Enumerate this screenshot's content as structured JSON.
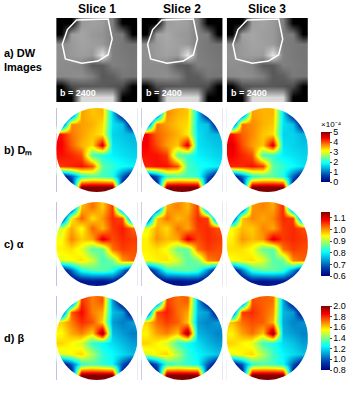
{
  "chart_data": {
    "type": "heatmap",
    "tick_labels": false,
    "columns": [
      "Slice 1",
      "Slice 2",
      "Slice 3"
    ],
    "rows": [
      {
        "label": "a) DW Images",
        "color": "gray",
        "zlim": [
          0,
          1
        ],
        "annotation": "b = 2400",
        "roi": {
          "x": [
            1.5,
            4.6,
            5.0,
            4.6,
            3.6,
            2.0,
            0.4,
            0.1,
            0.6
          ],
          "y": [
            -0.3,
            -0.4,
            1.5,
            3.0,
            3.6,
            3.8,
            3.4,
            2.0,
            0.6
          ]
        },
        "cells": [
          [
            [
              0,
              0,
              0.6,
              0.63,
              0.61,
              0.5,
              0,
              0
            ],
            [
              0,
              0.62,
              0.65,
              0.6,
              0.58,
              0.5,
              0.48,
              0
            ],
            [
              0.55,
              0.6,
              0.64,
              0.62,
              0.6,
              0.5,
              0.47,
              0.45
            ],
            [
              0.56,
              0.6,
              0.62,
              0.6,
              0.9,
              0.5,
              0.48,
              0.46
            ],
            [
              0.55,
              0.54,
              0.52,
              0.35,
              0.36,
              0.5,
              0.49,
              0.47
            ],
            [
              0.54,
              0.55,
              0.56,
              0.5,
              0.35,
              0.37,
              0.47,
              0.46
            ],
            [
              0,
              0.3,
              0.34,
              0.35,
              0.36,
              0.34,
              0.3,
              0
            ],
            [
              0,
              0,
              0.85,
              0.85,
              0.85,
              0.85,
              0,
              0
            ]
          ],
          [
            [
              0,
              0,
              0.61,
              0.64,
              0.62,
              0.5,
              0,
              0
            ],
            [
              0,
              0.63,
              0.66,
              0.61,
              0.59,
              0.51,
              0.48,
              0
            ],
            [
              0.56,
              0.61,
              0.65,
              0.63,
              0.6,
              0.5,
              0.47,
              0.45
            ],
            [
              0.56,
              0.61,
              0.63,
              0.61,
              0.9,
              0.5,
              0.48,
              0.46
            ],
            [
              0.55,
              0.55,
              0.53,
              0.36,
              0.35,
              0.5,
              0.49,
              0.47
            ],
            [
              0.54,
              0.55,
              0.56,
              0.51,
              0.36,
              0.36,
              0.47,
              0.46
            ],
            [
              0,
              0.3,
              0.33,
              0.35,
              0.35,
              0.34,
              0.3,
              0
            ],
            [
              0,
              0,
              0.85,
              0.86,
              0.86,
              0.85,
              0,
              0
            ]
          ],
          [
            [
              0,
              0,
              0.62,
              0.64,
              0.61,
              0.51,
              0,
              0
            ],
            [
              0,
              0.63,
              0.65,
              0.62,
              0.6,
              0.5,
              0.49,
              0
            ],
            [
              0.55,
              0.6,
              0.64,
              0.63,
              0.61,
              0.5,
              0.48,
              0.46
            ],
            [
              0.57,
              0.6,
              0.62,
              0.61,
              0.9,
              0.51,
              0.48,
              0.46
            ],
            [
              0.56,
              0.55,
              0.52,
              0.36,
              0.35,
              0.5,
              0.49,
              0.47
            ],
            [
              0.54,
              0.56,
              0.55,
              0.5,
              0.35,
              0.37,
              0.48,
              0.46
            ],
            [
              0,
              0.31,
              0.34,
              0.35,
              0.35,
              0.33,
              0.3,
              0
            ],
            [
              0,
              0,
              0.86,
              0.86,
              0.85,
              0.85,
              0,
              0
            ]
          ]
        ]
      },
      {
        "label": "b) Dₘ",
        "color": "jet",
        "zlim": [
          0,
          5
        ],
        "zticks": [
          0,
          1,
          2,
          3,
          4,
          5
        ],
        "colorbar_title": "×10⁻⁴",
        "cells": [
          [
            [
              0,
              0,
              3.6,
              3.4,
              3.5,
              1.6,
              0,
              0
            ],
            [
              0,
              3.7,
              3.6,
              3.5,
              3.3,
              1.7,
              1.5,
              0
            ],
            [
              4.3,
              3.8,
              3.6,
              3.4,
              3.2,
              1.6,
              1.5,
              1.4
            ],
            [
              4.4,
              3.9,
              3.5,
              3.3,
              4.6,
              1.7,
              1.6,
              1.5
            ],
            [
              4.3,
              4.2,
              4.0,
              2.2,
              2.0,
              1.8,
              1.7,
              1.6
            ],
            [
              4.1,
              4.2,
              4.3,
              4.0,
              2.3,
              2.1,
              1.9,
              1.8
            ],
            [
              0,
              0.8,
              2.0,
              2.3,
              2.2,
              2.0,
              0.9,
              0
            ],
            [
              0,
              0,
              5,
              5,
              5,
              5,
              0,
              0
            ]
          ],
          [
            [
              0,
              0,
              3.7,
              3.5,
              3.4,
              1.6,
              0,
              0
            ],
            [
              0,
              3.8,
              3.6,
              3.4,
              3.3,
              1.6,
              1.5,
              0
            ],
            [
              4.4,
              3.9,
              3.7,
              3.5,
              3.2,
              1.7,
              1.5,
              1.4
            ],
            [
              4.4,
              4.0,
              3.6,
              3.4,
              4.6,
              1.7,
              1.6,
              1.5
            ],
            [
              4.3,
              4.3,
              4.1,
              2.3,
              2.1,
              1.8,
              1.7,
              1.6
            ],
            [
              4.2,
              4.3,
              4.3,
              4.0,
              2.2,
              2.0,
              1.9,
              1.8
            ],
            [
              0,
              0.8,
              2.1,
              2.3,
              2.2,
              2.1,
              0.9,
              0
            ],
            [
              0,
              0,
              5,
              5,
              5,
              5,
              0,
              0
            ]
          ],
          [
            [
              0,
              0,
              3.6,
              3.5,
              3.5,
              1.7,
              0,
              0
            ],
            [
              0,
              3.8,
              3.7,
              3.5,
              3.4,
              1.7,
              1.5,
              0
            ],
            [
              4.3,
              3.9,
              3.7,
              3.4,
              3.3,
              1.6,
              1.6,
              1.4
            ],
            [
              4.5,
              4.0,
              3.6,
              3.4,
              4.6,
              1.7,
              1.6,
              1.5
            ],
            [
              4.4,
              4.2,
              4.0,
              2.2,
              2.1,
              1.8,
              1.7,
              1.6
            ],
            [
              4.2,
              4.2,
              4.3,
              4.1,
              2.3,
              2.1,
              1.9,
              1.7
            ],
            [
              0,
              0.9,
              2.0,
              2.3,
              2.3,
              2.0,
              0.9,
              0
            ],
            [
              0,
              0,
              5,
              5,
              5,
              5,
              0,
              0
            ]
          ]
        ]
      },
      {
        "label": "c) α",
        "color": "jet",
        "zlim": [
          0.6,
          1.15
        ],
        "zticks": [
          0.6,
          0.7,
          0.8,
          0.9,
          {
            "value": 1,
            "label": "1.0"
          },
          1.1
        ],
        "cells": [
          [
            [
              0.6,
              0.6,
              0.98,
              1.02,
              0.97,
              1.05,
              0.6,
              0.6
            ],
            [
              0.6,
              0.95,
              1.03,
              0.96,
              1.0,
              1.06,
              1.04,
              0.6
            ],
            [
              0.92,
              0.99,
              0.94,
              1.03,
              0.98,
              1.05,
              1.07,
              1.03
            ],
            [
              0.94,
              1.01,
              0.97,
              0.99,
              1.1,
              1.04,
              1.06,
              1.05
            ],
            [
              0.95,
              0.96,
              0.93,
              0.85,
              0.86,
              1.02,
              1.05,
              1.04
            ],
            [
              0.93,
              0.94,
              0.96,
              0.92,
              0.84,
              0.87,
              1.0,
              1.03
            ],
            [
              0.6,
              0.7,
              0.82,
              0.85,
              0.86,
              0.83,
              0.72,
              0.6
            ],
            [
              0.6,
              0.6,
              0.62,
              0.63,
              0.62,
              0.64,
              0.6,
              0.6
            ]
          ],
          [
            [
              0.6,
              0.6,
              0.99,
              1.01,
              0.98,
              1.05,
              0.6,
              0.6
            ],
            [
              0.6,
              0.97,
              1.02,
              0.98,
              1.0,
              1.06,
              1.05,
              0.6
            ],
            [
              0.93,
              0.99,
              0.96,
              1.02,
              0.99,
              1.05,
              1.06,
              1.04
            ],
            [
              0.95,
              1.0,
              0.98,
              0.99,
              1.1,
              1.04,
              1.06,
              1.05
            ],
            [
              0.95,
              0.96,
              0.94,
              0.86,
              0.86,
              1.02,
              1.05,
              1.04
            ],
            [
              0.94,
              0.95,
              0.96,
              0.92,
              0.85,
              0.87,
              1.01,
              1.03
            ],
            [
              0.6,
              0.71,
              0.83,
              0.85,
              0.86,
              0.84,
              0.72,
              0.6
            ],
            [
              0.6,
              0.6,
              0.62,
              0.62,
              0.63,
              0.63,
              0.6,
              0.6
            ]
          ],
          [
            [
              0.6,
              0.6,
              1.0,
              1.01,
              0.99,
              1.06,
              0.6,
              0.6
            ],
            [
              0.6,
              0.97,
              1.01,
              0.99,
              1.01,
              1.06,
              1.05,
              0.6
            ],
            [
              0.94,
              0.98,
              0.97,
              1.01,
              0.99,
              1.05,
              1.06,
              1.04
            ],
            [
              0.95,
              1.0,
              0.98,
              1.0,
              1.1,
              1.05,
              1.06,
              1.05
            ],
            [
              0.96,
              0.96,
              0.94,
              0.86,
              0.85,
              1.02,
              1.05,
              1.04
            ],
            [
              0.94,
              0.95,
              0.96,
              0.93,
              0.85,
              0.86,
              1.01,
              1.03
            ],
            [
              0.6,
              0.71,
              0.83,
              0.86,
              0.86,
              0.84,
              0.73,
              0.6
            ],
            [
              0.6,
              0.6,
              0.63,
              0.62,
              0.63,
              0.63,
              0.6,
              0.6
            ]
          ]
        ]
      },
      {
        "label": "d) β",
        "color": "jet",
        "zlim": [
          0.8,
          2.0
        ],
        "zticks": [
          0.8,
          {
            "value": 1,
            "label": "1.0"
          },
          1.2,
          1.4,
          1.6,
          1.8,
          {
            "value": 2,
            "label": "2.0"
          }
        ],
        "cells": [
          [
            [
              0.8,
              0.8,
              1.8,
              1.7,
              1.75,
              1.1,
              0.8,
              0.8
            ],
            [
              0.8,
              1.75,
              1.85,
              1.7,
              1.65,
              1.15,
              1.1,
              0.8
            ],
            [
              1.6,
              1.7,
              1.8,
              1.75,
              1.6,
              1.1,
              1.05,
              1.1
            ],
            [
              1.55,
              1.65,
              1.7,
              1.6,
              2.0,
              1.15,
              1.1,
              1.05
            ],
            [
              1.6,
              1.55,
              1.5,
              1.3,
              1.25,
              1.2,
              1.15,
              1.1
            ],
            [
              1.5,
              1.55,
              1.6,
              1.45,
              1.3,
              1.25,
              1.2,
              1.15
            ],
            [
              0.8,
              1.0,
              1.3,
              1.35,
              1.3,
              1.25,
              1.0,
              0.8
            ],
            [
              0.8,
              0.8,
              2.0,
              2.0,
              2.0,
              2.0,
              0.8,
              0.8
            ]
          ],
          [
            [
              0.8,
              0.8,
              1.78,
              1.72,
              1.74,
              1.12,
              0.8,
              0.8
            ],
            [
              0.8,
              1.76,
              1.82,
              1.72,
              1.66,
              1.14,
              1.1,
              0.8
            ],
            [
              1.6,
              1.72,
              1.78,
              1.74,
              1.62,
              1.1,
              1.06,
              1.1
            ],
            [
              1.56,
              1.66,
              1.7,
              1.62,
              2.0,
              1.14,
              1.1,
              1.06
            ],
            [
              1.6,
              1.56,
              1.5,
              1.32,
              1.26,
              1.2,
              1.14,
              1.1
            ],
            [
              1.5,
              1.56,
              1.6,
              1.46,
              1.3,
              1.24,
              1.2,
              1.16
            ],
            [
              0.8,
              1.0,
              1.3,
              1.34,
              1.3,
              1.26,
              1.0,
              0.8
            ],
            [
              0.8,
              0.8,
              2.0,
              2.0,
              2.0,
              2.0,
              0.8,
              0.8
            ]
          ],
          [
            [
              0.8,
              0.8,
              1.76,
              1.74,
              1.72,
              1.12,
              0.8,
              0.8
            ],
            [
              0.8,
              1.78,
              1.8,
              1.74,
              1.68,
              1.14,
              1.1,
              0.8
            ],
            [
              1.62,
              1.72,
              1.76,
              1.74,
              1.64,
              1.12,
              1.06,
              1.08
            ],
            [
              1.56,
              1.66,
              1.72,
              1.62,
              2.0,
              1.14,
              1.1,
              1.06
            ],
            [
              1.6,
              1.56,
              1.52,
              1.32,
              1.28,
              1.2,
              1.16,
              1.1
            ],
            [
              1.52,
              1.56,
              1.6,
              1.46,
              1.32,
              1.24,
              1.2,
              1.16
            ],
            [
              0.8,
              1.0,
              1.3,
              1.34,
              1.32,
              1.26,
              1.0,
              0.8
            ],
            [
              0.8,
              0.8,
              2.0,
              2.0,
              2.0,
              2.0,
              0.8,
              0.8
            ]
          ]
        ]
      }
    ]
  }
}
